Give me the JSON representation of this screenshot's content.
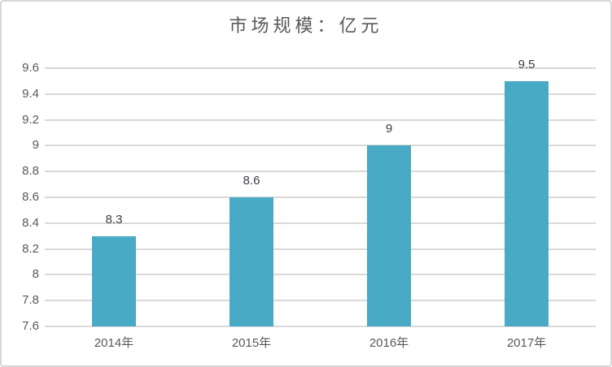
{
  "chart_data": {
    "type": "bar",
    "title": "市场规模：亿元",
    "categories": [
      "2014年",
      "2015年",
      "2016年",
      "2017年"
    ],
    "values": [
      8.3,
      8.6,
      9,
      9.5
    ],
    "data_labels": [
      "8.3",
      "8.6",
      "9",
      "9.5"
    ],
    "xlabel": "",
    "ylabel": "",
    "ylim": [
      7.6,
      9.6
    ],
    "y_tick_values": [
      7.6,
      7.8,
      8,
      8.2,
      8.4,
      8.6,
      8.8,
      9,
      9.2,
      9.4,
      9.6
    ],
    "y_tick_labels": [
      "7.6",
      "7.8",
      "8",
      "8.2",
      "8.4",
      "8.6",
      "8.8",
      "9",
      "9.2",
      "9.4",
      "9.6"
    ],
    "grid": "horizontal",
    "legend": "none",
    "colors": {
      "bar": "#49aac5",
      "gridline": "#d9d9d9",
      "axis_text": "#595959",
      "title_text": "#595959",
      "data_label_text": "#3a3d45",
      "background": "#ffffff",
      "frame_border": "#d7d7d7"
    }
  }
}
